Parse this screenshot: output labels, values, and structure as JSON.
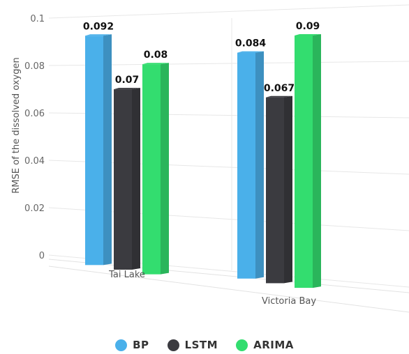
{
  "chart_data": {
    "type": "bar",
    "title": "",
    "xlabel": "",
    "ylabel": "RMSE of the dissolved oxygen",
    "ylim": [
      0,
      0.1
    ],
    "yticks": [
      "0",
      "0.02",
      "0.04",
      "0.06",
      "0.08",
      "0.1"
    ],
    "categories": [
      "Tai Lake",
      "Victoria Bay"
    ],
    "series": [
      {
        "name": "BP",
        "values": [
          0.092,
          0.084
        ],
        "labels": [
          "0.092",
          "0.084"
        ],
        "color": "#4ab0ea"
      },
      {
        "name": "LSTM",
        "values": [
          0.07,
          0.067
        ],
        "labels": [
          "0.07",
          "0.067"
        ],
        "color": "#3b3b40"
      },
      {
        "name": "ARIMA",
        "values": [
          0.08,
          0.09
        ],
        "labels": [
          "0.08",
          "0.09"
        ],
        "color": "#33dd6f"
      }
    ],
    "grid": true,
    "legend_position": "bottom",
    "style": "3d"
  }
}
